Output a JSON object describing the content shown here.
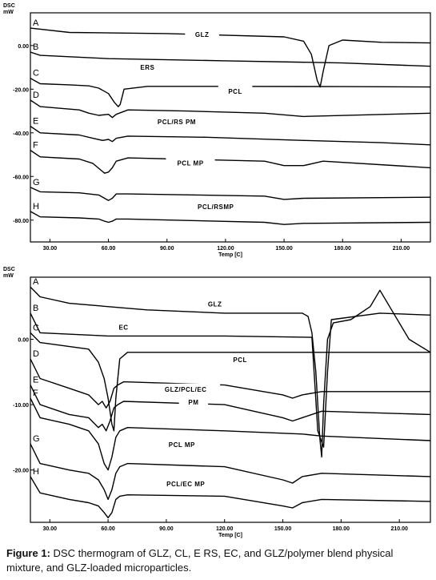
{
  "chart_data": [
    {
      "type": "line",
      "ylabel_top": "DSC",
      "ylabel_unit": "mW",
      "xlabel": "Temp [C]",
      "x_ticks": [
        "30.00",
        "60.00",
        "90.00",
        "120.00",
        "150.00",
        "180.00",
        "210.00"
      ],
      "x_tick_values": [
        30,
        60,
        90,
        120,
        150,
        180,
        210
      ],
      "y_ticks": [
        "0.00",
        "-20.00",
        "-40.00",
        "-60.00",
        "-80.00"
      ],
      "y_tick_values": [
        0,
        -20,
        -40,
        -60,
        -80
      ],
      "xlim": [
        20,
        225
      ],
      "ylim": [
        -90,
        15
      ],
      "grid": false,
      "series": [
        {
          "letter": "A",
          "name": "GLZ",
          "x": [
            20,
            40,
            90,
            150,
            160,
            164,
            167,
            168.5,
            170,
            173,
            180,
            200,
            225
          ],
          "y": [
            8,
            6,
            5.5,
            4,
            2,
            -4,
            -16,
            -19,
            -12,
            0,
            2.5,
            1.5,
            1.2
          ]
        },
        {
          "letter": "B",
          "name": "ERS",
          "x": [
            20,
            25,
            60,
            120,
            180,
            225
          ],
          "y": [
            -3,
            -4.5,
            -6,
            -7,
            -8,
            -9.5
          ]
        },
        {
          "letter": "C",
          "name": "PCL",
          "x": [
            20,
            25,
            40,
            50,
            55,
            60,
            63,
            65,
            66,
            68,
            80,
            120,
            180,
            225
          ],
          "y": [
            -15,
            -17.5,
            -18,
            -18.5,
            -19.5,
            -22,
            -26,
            -28,
            -27,
            -20,
            -18.7,
            -18.7,
            -18.8,
            -19
          ]
        },
        {
          "letter": "D",
          "name": "PCL/RS PM",
          "x": [
            20,
            25,
            45,
            50,
            55,
            60,
            62,
            64,
            70,
            100,
            140,
            160,
            225
          ],
          "y": [
            -25,
            -28,
            -29.5,
            -31,
            -32,
            -31.5,
            -33,
            -31.5,
            -29.5,
            -30,
            -31,
            -32.5,
            -31
          ]
        },
        {
          "letter": "E",
          "name": "PCL/RS PM",
          "x": [
            20,
            25,
            45,
            52,
            57,
            60,
            62,
            64,
            70,
            110,
            160,
            200,
            225
          ],
          "y": [
            -37,
            -40,
            -41,
            -42.5,
            -43.5,
            -43,
            -44,
            -42.5,
            -41.5,
            -42,
            -43.5,
            -44.5,
            -45.5
          ]
        },
        {
          "letter": "F",
          "name": "PCL MP",
          "x": [
            20,
            25,
            45,
            52,
            56,
            58,
            60,
            62,
            64,
            70,
            140,
            150,
            160,
            170,
            225
          ],
          "y": [
            -48,
            -51,
            -52,
            -54,
            -57,
            -58.5,
            -58,
            -56,
            -53,
            -51.5,
            -53,
            -55,
            -55,
            -53,
            -56
          ]
        },
        {
          "letter": "G",
          "name": "PCL/RSMP",
          "x": [
            20,
            25,
            45,
            55,
            58,
            60,
            62,
            64,
            70,
            140,
            150,
            160,
            225
          ],
          "y": [
            -65,
            -67,
            -67.5,
            -68.5,
            -70,
            -71,
            -70,
            -68,
            -68,
            -69,
            -70.5,
            -70,
            -69.5
          ]
        },
        {
          "letter": "H",
          "name": "PCL/RSMP",
          "x": [
            20,
            25,
            45,
            55,
            58,
            60,
            62,
            64,
            70,
            140,
            150,
            160,
            225
          ],
          "y": [
            -76,
            -78.5,
            -79,
            -79.5,
            -80.5,
            -81,
            -80.5,
            -79.5,
            -79.5,
            -81,
            -82,
            -81.5,
            -81
          ]
        }
      ],
      "annotations": [
        {
          "text": "GLZ",
          "x": 108,
          "y": 4
        },
        {
          "text": "ERS",
          "x": 80,
          "y": -11
        },
        {
          "text": "PCL",
          "x": 125,
          "y": -22
        },
        {
          "text": "PCL/RS PM",
          "x": 95,
          "y": -36
        },
        {
          "text": "PCL MP",
          "x": 102,
          "y": -55
        },
        {
          "text": "PCL/RSMP",
          "x": 115,
          "y": -75
        }
      ]
    },
    {
      "type": "line",
      "ylabel_top": "DSC",
      "ylabel_unit": "mW",
      "xlabel": "Temp [C]",
      "x_ticks": [
        "30.00",
        "60.00",
        "90.00",
        "120.00",
        "150.00",
        "180.00",
        "210.00"
      ],
      "x_tick_values": [
        30,
        60,
        90,
        120,
        150,
        180,
        210
      ],
      "y_ticks": [
        "0.00",
        "-10.00",
        "-20.00"
      ],
      "y_tick_values": [
        0,
        -10,
        -20
      ],
      "xlim": [
        20,
        226
      ],
      "ylim": [
        -28,
        9.5
      ],
      "grid": false,
      "series": [
        {
          "letter": "A",
          "name": "GLZ",
          "x": [
            20,
            25,
            40,
            80,
            120,
            160,
            163,
            165,
            167,
            169,
            170,
            171,
            173,
            176,
            185,
            195,
            200,
            205,
            215,
            226
          ],
          "y": [
            8,
            6.5,
            5.5,
            4.5,
            4,
            4,
            3.5,
            1,
            -5,
            -15,
            -18,
            -10,
            0,
            2.5,
            3,
            5,
            7.5,
            5,
            0,
            -2
          ]
        },
        {
          "letter": "B",
          "name": "EC",
          "x": [
            20,
            25,
            60,
            120,
            165,
            168,
            171,
            173,
            175,
            200,
            226
          ],
          "y": [
            4,
            1,
            0.5,
            0.5,
            0.3,
            -14,
            -16.5,
            -5,
            3,
            4,
            3.7
          ]
        },
        {
          "letter": "C",
          "name": "PCL",
          "x": [
            20,
            25,
            50,
            55,
            58,
            60,
            62,
            63,
            64,
            66,
            70,
            120,
            180,
            226
          ],
          "y": [
            1,
            -0.5,
            -1.5,
            -3.5,
            -6,
            -9,
            -13,
            -14,
            -9,
            -3,
            -2,
            -2,
            -2,
            -2
          ]
        },
        {
          "letter": "D",
          "name": "GLZ/PCL/EC PM",
          "x": [
            20,
            25,
            40,
            50,
            55,
            57,
            59,
            61,
            63,
            65,
            68,
            120,
            150,
            155,
            160,
            170,
            226
          ],
          "y": [
            -3,
            -6,
            -7.5,
            -8.5,
            -10,
            -9.5,
            -10.5,
            -9.5,
            -7.5,
            -7,
            -6.5,
            -7,
            -8.5,
            -9,
            -8.5,
            -8,
            -8
          ]
        },
        {
          "letter": "E",
          "name": "GLZ/PCL/EC PM",
          "x": [
            20,
            25,
            40,
            50,
            55,
            57,
            59,
            61,
            63,
            65,
            68,
            120,
            150,
            155,
            160,
            170,
            226
          ],
          "y": [
            -7,
            -10,
            -11.5,
            -12,
            -13.5,
            -13,
            -14,
            -12.5,
            -10.5,
            -10,
            -9.5,
            -10,
            -12,
            -12.5,
            -12,
            -11,
            -11.5
          ]
        },
        {
          "letter": "F",
          "name": "PCL MP",
          "x": [
            20,
            25,
            40,
            50,
            55,
            58,
            60,
            62,
            64,
            66,
            70,
            120,
            160,
            170,
            226
          ],
          "y": [
            -9,
            -12,
            -13,
            -14,
            -16,
            -19,
            -20,
            -18,
            -15,
            -14,
            -13.5,
            -14,
            -14.5,
            -14.8,
            -15.5
          ]
        },
        {
          "letter": "G",
          "name": "PCL MP",
          "x": [
            20,
            25,
            40,
            50,
            55,
            58,
            60,
            62,
            64,
            66,
            70,
            120,
            150,
            155,
            160,
            170,
            226
          ],
          "y": [
            -16,
            -19,
            -20,
            -20.5,
            -21.5,
            -23,
            -24.5,
            -23,
            -20.5,
            -19.5,
            -19,
            -19.5,
            -21.5,
            -22,
            -21,
            -20.5,
            -21
          ]
        },
        {
          "letter": "H",
          "name": "PCL/EC MP",
          "x": [
            20,
            25,
            40,
            50,
            55,
            58,
            60,
            62,
            64,
            66,
            70,
            120,
            150,
            155,
            160,
            170,
            226
          ],
          "y": [
            -21,
            -23.5,
            -24.5,
            -25,
            -25.5,
            -26.5,
            -27.3,
            -26.5,
            -24.5,
            -24,
            -23.8,
            -24,
            -25.5,
            -25.8,
            -25,
            -24.5,
            -24.8
          ]
        }
      ],
      "annotations": [
        {
          "text": "GLZ",
          "x": 115,
          "y": 5
        },
        {
          "text": "EC",
          "x": 68,
          "y": 1.5
        },
        {
          "text": "PCL",
          "x": 128,
          "y": -3.5
        },
        {
          "text": "GLZ/PCL/EC",
          "x": 100,
          "y": -8
        },
        {
          "text": "PM",
          "x": 104,
          "y": -10
        },
        {
          "text": "PCL MP",
          "x": 98,
          "y": -16.5
        },
        {
          "text": "PCL/EC MP",
          "x": 100,
          "y": -22.5
        }
      ]
    }
  ],
  "caption": {
    "label": "Figure 1:",
    "text": " DSC  thermogram of GLZ, CL, E RS, EC, and GLZ/polymer blend physical mixture, and GLZ-loaded microparticles."
  }
}
